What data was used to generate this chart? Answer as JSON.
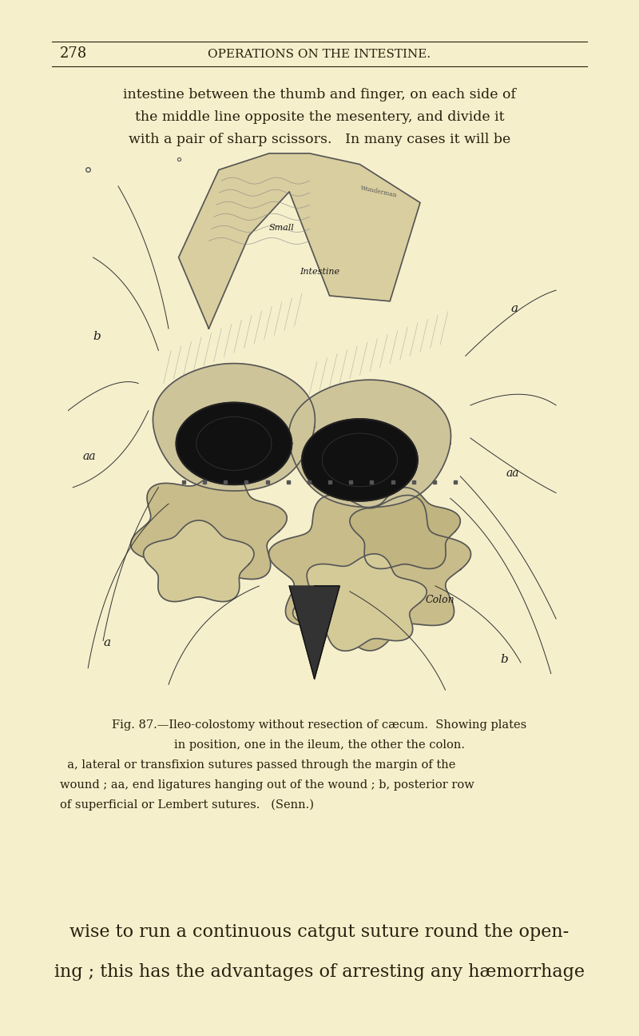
{
  "bg_color": "#f5efcc",
  "page_number": "278",
  "header_title": "OPERATIONS ON THE INTESTINE.",
  "top_text_lines": [
    "intestine between the thumb and finger, on each side of",
    "the middle line opposite the mesentery, and divide it",
    "with a pair of sharp scissors.   In many cases it will be"
  ],
  "caption_lines": [
    "Fig. 87.—Ileo-colostomy without resection of cæcum.  Showing plates",
    "in position, one in the ileum, the other the colon.",
    "  a, lateral or transfixion sutures passed through the margin of the",
    "wound ; aa, end ligatures hanging out of the wound ; b, posterior row",
    "of superficial or Lembert sutures.   (Senn.)"
  ],
  "bottom_text_lines": [
    "wise to run a continuous catgut suture round the open-",
    "ing ; this has the advantages of arresting any hæmorrhage"
  ],
  "text_color": "#2a1f0e",
  "header_color": "#2a1f0e"
}
